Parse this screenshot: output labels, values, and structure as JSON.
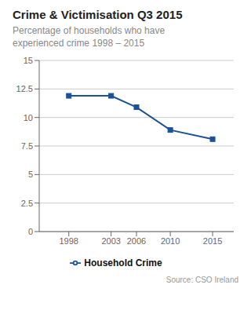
{
  "chart_data": {
    "type": "line",
    "title": "Crime & Victimisation Q3 2015",
    "subtitle": "Percentage of households who have\nexperienced crime 1998 – 2015",
    "x": [
      1998,
      2003,
      2006,
      2010,
      2015
    ],
    "xlim": [
      1994.5,
      2017.5
    ],
    "xticks": [
      1998,
      2003,
      2006,
      2010,
      2015
    ],
    "series": [
      {
        "name": "Household Crime",
        "color": "#1a5296",
        "marker": "square",
        "values": [
          11.9,
          11.9,
          10.9,
          8.9,
          8.1
        ]
      }
    ],
    "ylim": [
      0,
      15
    ],
    "yticks": [
      0,
      2.5,
      5,
      7.5,
      10,
      12.5,
      15
    ],
    "grid": true,
    "legend": "bottom",
    "annotations": [
      "Source: CSO Ireland"
    ]
  }
}
